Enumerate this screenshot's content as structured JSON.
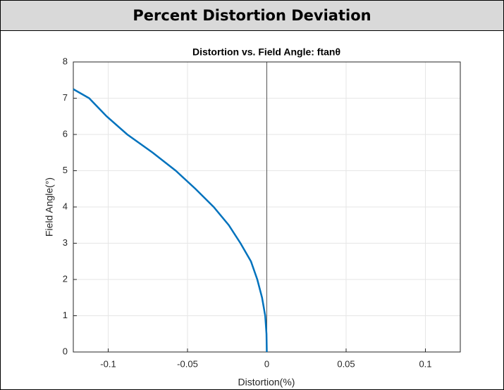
{
  "header": {
    "title": "Percent Distortion Deviation"
  },
  "chart_data": {
    "type": "line",
    "title": "Distortion vs. Field Angle: ftanθ",
    "x_label": "Distortion(%)",
    "y_label": "Field Angle(°)",
    "series": [
      {
        "color": "#0072bd",
        "x": [
          0,
          -0.0002,
          -0.001,
          -0.003,
          -0.006,
          -0.01,
          -0.0166,
          -0.024,
          -0.0335,
          -0.045,
          -0.0574,
          -0.072,
          -0.088,
          -0.101,
          -0.112,
          -0.122
        ],
        "values": [
          0,
          0.5,
          1,
          1.5,
          2,
          2.5,
          3,
          3.5,
          4,
          4.5,
          5,
          5.5,
          6,
          6.5,
          7,
          7.25
        ]
      }
    ],
    "xlim": [
      -0.122,
      0.122
    ],
    "xticks": [
      -0.1,
      -0.05,
      0,
      0.05,
      0.1
    ],
    "ylim": [
      0,
      8
    ],
    "yticks": [
      0,
      1,
      2,
      3,
      4,
      5,
      6,
      7,
      8
    ],
    "grid": true
  }
}
